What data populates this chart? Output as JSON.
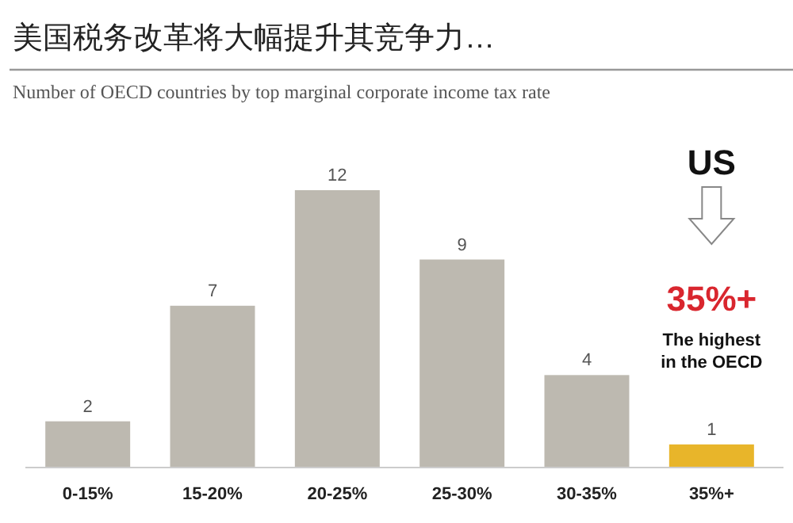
{
  "chart_data": {
    "type": "bar",
    "title": "美国税务改革将大幅提升其竞争力…",
    "subtitle": "Number of OECD countries by top marginal corporate income tax rate",
    "categories": [
      "0-15%",
      "15-20%",
      "20-25%",
      "25-30%",
      "30-35%",
      "35%+"
    ],
    "values": [
      2,
      7,
      12,
      9,
      4,
      1
    ],
    "colors": [
      "#bdb9b0",
      "#bdb9b0",
      "#bdb9b0",
      "#bdb9b0",
      "#bdb9b0",
      "#e8b52a"
    ],
    "data_labels": true,
    "annotations": [
      "US",
      "35%+",
      "The highest\nin the OECD"
    ]
  }
}
